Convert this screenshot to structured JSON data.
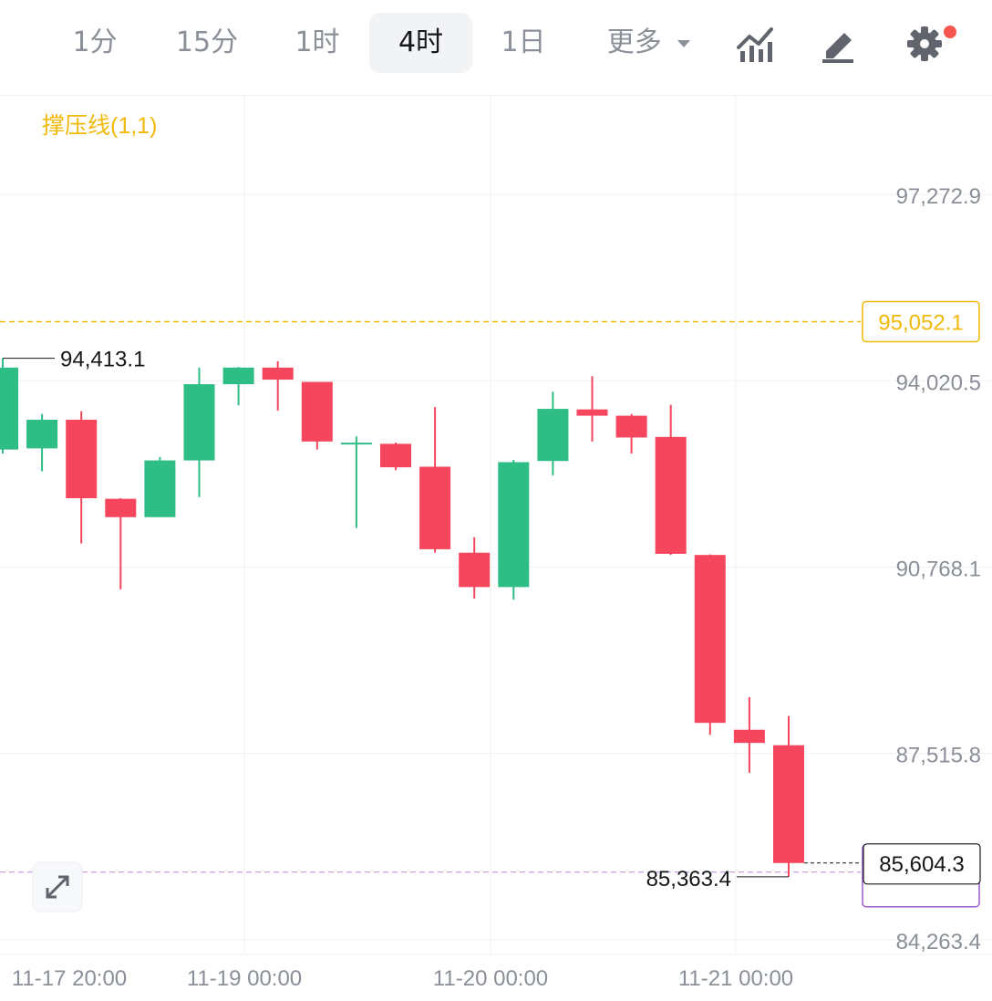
{
  "toolbar": {
    "tabs": [
      {
        "label": "1分",
        "active": false
      },
      {
        "label": "15分",
        "active": false
      },
      {
        "label": "1时",
        "active": false
      },
      {
        "label": "4时",
        "active": true
      },
      {
        "label": "1日",
        "active": false
      },
      {
        "label": "更多",
        "active": false
      }
    ],
    "icons": [
      "indicators-icon",
      "draw-icon",
      "settings-icon"
    ],
    "settings_badge": "notification-dot"
  },
  "indicator_label": "撑压线(1,1)",
  "colors": {
    "up": "#2ebd85",
    "down": "#f6465d",
    "resistance": "#f0b90b",
    "current": "#a05ac8",
    "grid": "#f0f1f3",
    "axis_text": "#8a8f98"
  },
  "chart_data": {
    "type": "candlestick",
    "ylim": [
      84263.4,
      97272.9
    ],
    "y_ticks": [
      "97,272.9",
      "94,020.5",
      "90,768.1",
      "87,515.8",
      "84,263.4"
    ],
    "x_ticks": [
      "11-17 20:00",
      "11-19 00:00",
      "11-20 00:00",
      "11-21 00:00"
    ],
    "candles": [
      {
        "o": 92820,
        "h": 94413.1,
        "l": 92750,
        "c": 94250
      },
      {
        "o": 92840,
        "h": 93440,
        "l": 92440,
        "c": 93340
      },
      {
        "o": 93340,
        "h": 93490,
        "l": 91180,
        "c": 91970
      },
      {
        "o": 91960,
        "h": 91970,
        "l": 90380,
        "c": 91640
      },
      {
        "o": 91640,
        "h": 92690,
        "l": 91640,
        "c": 92630
      },
      {
        "o": 92630,
        "h": 94250,
        "l": 91990,
        "c": 93960
      },
      {
        "o": 93960,
        "h": 94260,
        "l": 93590,
        "c": 94250
      },
      {
        "o": 94250,
        "h": 94360,
        "l": 93500,
        "c": 94040
      },
      {
        "o": 94000,
        "h": 94000,
        "l": 92820,
        "c": 92960
      },
      {
        "o": 92940,
        "h": 93050,
        "l": 91450,
        "c": 92940
      },
      {
        "o": 92920,
        "h": 92940,
        "l": 92460,
        "c": 92510
      },
      {
        "o": 92520,
        "h": 93560,
        "l": 91020,
        "c": 91080
      },
      {
        "o": 91020,
        "h": 91290,
        "l": 90220,
        "c": 90420
      },
      {
        "o": 90420,
        "h": 92640,
        "l": 90200,
        "c": 92600
      },
      {
        "o": 92620,
        "h": 93830,
        "l": 92370,
        "c": 93530
      },
      {
        "o": 93520,
        "h": 94100,
        "l": 92960,
        "c": 93410
      },
      {
        "o": 93410,
        "h": 93440,
        "l": 92750,
        "c": 93030
      },
      {
        "o": 93040,
        "h": 93600,
        "l": 90980,
        "c": 91000
      },
      {
        "o": 90980,
        "h": 90990,
        "l": 87840,
        "c": 88050
      },
      {
        "o": 87930,
        "h": 88500,
        "l": 87180,
        "c": 87700
      },
      {
        "o": 87660,
        "h": 88170,
        "l": 85363.4,
        "c": 85604.3
      }
    ],
    "max_label": "94,413.1",
    "min_label": "85,363.4",
    "resistance": {
      "value": 95052.1,
      "label": "95,052.1"
    },
    "last_price": {
      "value": 85604.3,
      "label": "85,604.3"
    }
  }
}
